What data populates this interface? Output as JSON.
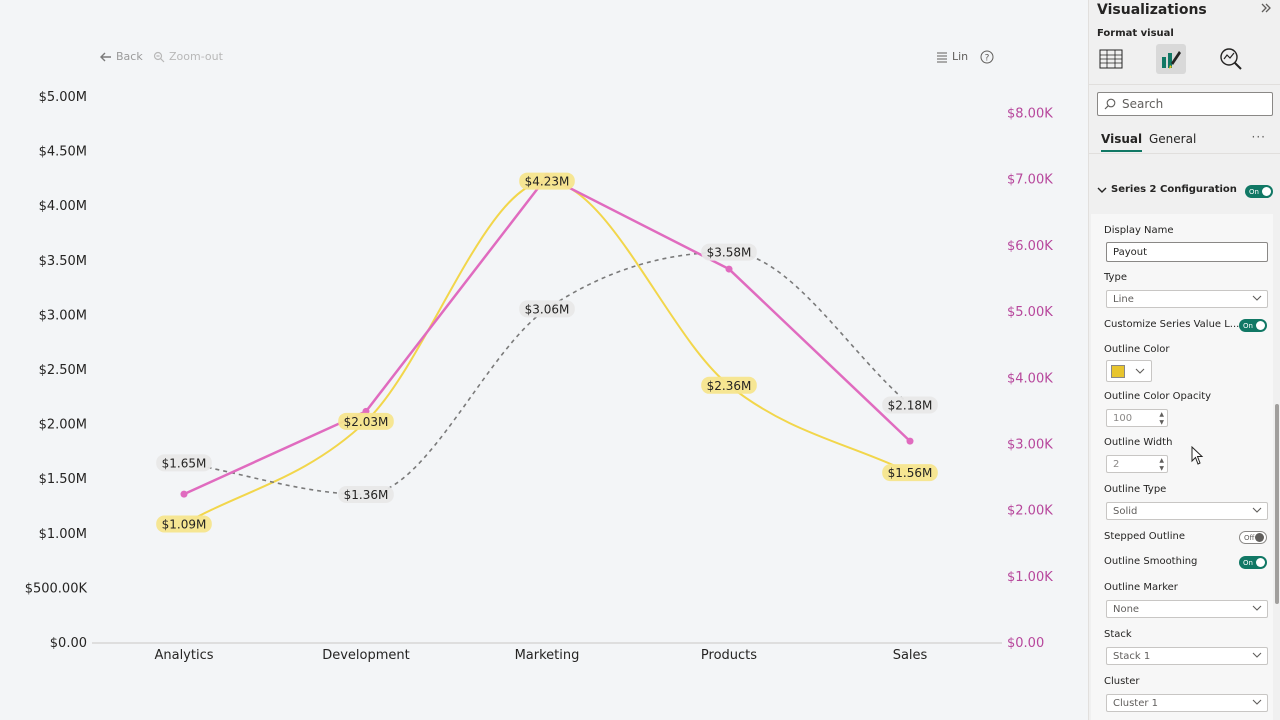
{
  "toolbar": {
    "back_label": "Back",
    "zoom_out_label": "Zoom-out",
    "scale_label": "Lin"
  },
  "colors": {
    "series_payout": "#e06bbf",
    "series_yellow": "#f2d64b",
    "series_dashed": "#7a7a7a",
    "right_axis": "#b7479c",
    "label_highlight": "#f6e58d",
    "label_plain": "#e8e8e8",
    "toggle_on": "#117865"
  },
  "chart_data": {
    "type": "line",
    "categories": [
      "Analytics",
      "Development",
      "Marketing",
      "Products",
      "Sales"
    ],
    "left_axis": {
      "ylim": [
        0,
        5000000
      ],
      "ticks": [
        "$0.00",
        "$500.00K",
        "$1.00M",
        "$1.50M",
        "$2.00M",
        "$2.50M",
        "$3.00M",
        "$3.50M",
        "$4.00M",
        "$4.50M",
        "$5.00M"
      ]
    },
    "right_axis": {
      "ylim": [
        0,
        8250
      ],
      "ticks": [
        "$0.00",
        "$1.00K",
        "$2.00K",
        "$3.00K",
        "$4.00K",
        "$5.00K",
        "$6.00K",
        "$7.00K",
        "$8.00K"
      ]
    },
    "series": [
      {
        "style": "solid-smooth",
        "color": "#f2d64b",
        "values": [
          1090000,
          2030000,
          4230000,
          2360000,
          1560000
        ],
        "labels": [
          "$1.09M",
          "$2.03M",
          "$4.23M",
          "$2.36M",
          "$1.56M"
        ],
        "label_style": "highlight"
      },
      {
        "style": "dashed-smooth",
        "color": "#7a7a7a",
        "values": [
          1650000,
          1360000,
          3060000,
          3580000,
          2180000
        ],
        "labels": [
          "$1.65M",
          "$1.36M",
          "$3.06M",
          "$3.58M",
          "$2.18M"
        ],
        "label_style": "plain"
      },
      {
        "style": "solid-straight-markers",
        "color": "#e06bbf",
        "axis": "right",
        "values": [
          2250,
          3500,
          7050,
          5650,
          3050
        ]
      }
    ]
  },
  "pane": {
    "title": "Visualizations",
    "subtitle": "Format visual",
    "search_placeholder": "Search",
    "tabs": [
      "Visual",
      "General"
    ],
    "more_label": "···",
    "section_title": "Series 2 Configuration",
    "toggle_on_label": "On",
    "toggle_off_label": "Off",
    "fields": {
      "display_name_label": "Display Name",
      "display_name_value": "Payout",
      "type_label": "Type",
      "type_value": "Line",
      "custom_labels_label": "Customize Series Value L...",
      "outline_color_label": "Outline Color",
      "outline_color_value": "#e8c52e",
      "outline_opacity_label": "Outline Color Opacity",
      "outline_opacity_value": "100",
      "outline_width_label": "Outline Width",
      "outline_width_value": "2",
      "outline_type_label": "Outline Type",
      "outline_type_value": "Solid",
      "stepped_label": "Stepped Outline",
      "smoothing_label": "Outline Smoothing",
      "marker_label": "Outline Marker",
      "marker_value": "None",
      "stack_label": "Stack",
      "stack_value": "Stack 1",
      "cluster_label": "Cluster",
      "cluster_value": "Cluster 1"
    }
  }
}
